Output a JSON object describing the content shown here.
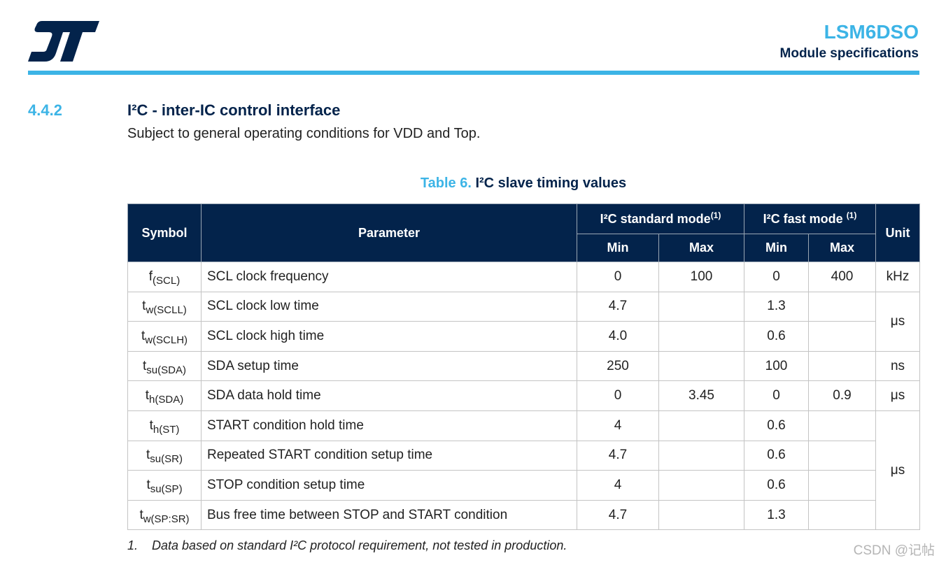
{
  "header": {
    "title": "LSM6DSO",
    "subtitle": "Module specifications",
    "colors": {
      "accent": "#3cb4e6",
      "navy": "#03234b"
    }
  },
  "section": {
    "number": "4.4.2",
    "title": "I²C - inter-IC control interface",
    "description": "Subject to general operating conditions for VDD and Top."
  },
  "table": {
    "caption_label": "Table 6.",
    "caption_text": "I²C slave timing values",
    "headers": {
      "symbol": "Symbol",
      "parameter": "Parameter",
      "standard_mode": "I²C standard mode",
      "standard_mode_note": "(1)",
      "fast_mode": "I²C fast mode ",
      "fast_mode_note": "(1)",
      "unit": "Unit",
      "min": "Min",
      "max": "Max"
    },
    "rows": [
      {
        "symbol": "f",
        "symbol_sub": "(SCL)",
        "parameter": "SCL clock frequency",
        "std_min": "0",
        "std_max": "100",
        "fast_min": "0",
        "fast_max": "400"
      },
      {
        "symbol": "t",
        "symbol_sub": "w(SCLL)",
        "parameter": "SCL clock low time",
        "std_min": "4.7",
        "std_max": "",
        "fast_min": "1.3",
        "fast_max": ""
      },
      {
        "symbol": "t",
        "symbol_sub": "w(SCLH)",
        "parameter": "SCL clock high time",
        "std_min": "4.0",
        "std_max": "",
        "fast_min": "0.6",
        "fast_max": ""
      },
      {
        "symbol": "t",
        "symbol_sub": "su(SDA)",
        "parameter": "SDA setup time",
        "std_min": "250",
        "std_max": "",
        "fast_min": "100",
        "fast_max": ""
      },
      {
        "symbol": "t",
        "symbol_sub": "h(SDA)",
        "parameter": "SDA data hold time",
        "std_min": "0",
        "std_max": "3.45",
        "fast_min": "0",
        "fast_max": "0.9"
      },
      {
        "symbol": "t",
        "symbol_sub": "h(ST)",
        "parameter": "START condition hold time",
        "std_min": "4",
        "std_max": "",
        "fast_min": "0.6",
        "fast_max": ""
      },
      {
        "symbol": "t",
        "symbol_sub": "su(SR)",
        "parameter": "Repeated START condition setup time",
        "std_min": "4.7",
        "std_max": "",
        "fast_min": "0.6",
        "fast_max": ""
      },
      {
        "symbol": "t",
        "symbol_sub": "su(SP)",
        "parameter": "STOP condition setup time",
        "std_min": "4",
        "std_max": "",
        "fast_min": "0.6",
        "fast_max": ""
      },
      {
        "symbol": "t",
        "symbol_sub": "w(SP:SR)",
        "parameter": "Bus free time between STOP and START condition",
        "std_min": "4.7",
        "std_max": "",
        "fast_min": "1.3",
        "fast_max": ""
      }
    ],
    "units": [
      "kHz",
      "μs",
      "ns",
      "μs",
      "μs"
    ]
  },
  "footnote": {
    "number": "1.",
    "text": "Data based on standard I²C protocol requirement, not tested in production."
  },
  "watermark": "CSDN @记帖"
}
